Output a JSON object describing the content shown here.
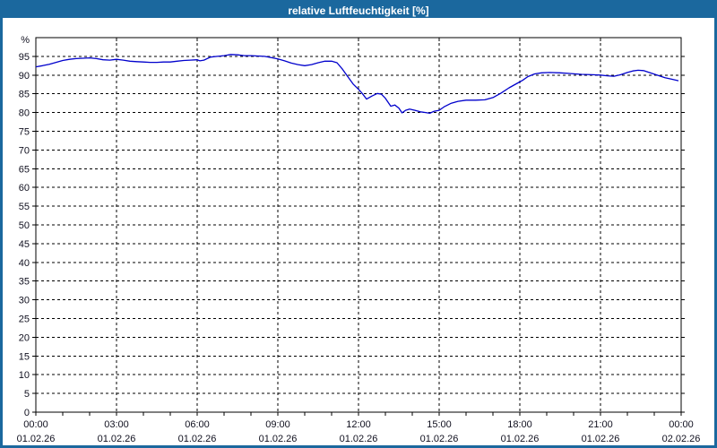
{
  "window": {
    "title": "relative Luftfeuchtigkeit [%]"
  },
  "colors": {
    "frame": "#1b689e",
    "title_text": "#ffffff",
    "background": "#ffffff",
    "plot_line": "#0000cc",
    "grid": "#000000",
    "label": "#10101f"
  },
  "chart_data": {
    "type": "line",
    "title": "relative Luftfeuchtigkeit [%]",
    "xlabel": "",
    "ylabel": "%",
    "ylim": [
      0,
      100
    ],
    "y_tick_step": 5,
    "y_ticks": [
      0,
      5,
      10,
      15,
      20,
      25,
      30,
      35,
      40,
      45,
      50,
      55,
      60,
      65,
      70,
      75,
      80,
      85,
      90,
      95
    ],
    "y_axis_unit_label": "%",
    "x_range_hours": [
      0,
      24
    ],
    "x_minor_tick_hours": 1,
    "grid": "dashed",
    "legend_position": "none",
    "x_major_ticks": [
      {
        "hour": 0,
        "time": "00:00",
        "date": "01.02.26"
      },
      {
        "hour": 3,
        "time": "03:00",
        "date": "01.02.26"
      },
      {
        "hour": 6,
        "time": "06:00",
        "date": "01.02.26"
      },
      {
        "hour": 9,
        "time": "09:00",
        "date": "01.02.26"
      },
      {
        "hour": 12,
        "time": "12:00",
        "date": "01.02.26"
      },
      {
        "hour": 15,
        "time": "15:00",
        "date": "01.02.26"
      },
      {
        "hour": 18,
        "time": "18:00",
        "date": "01.02.26"
      },
      {
        "hour": 21,
        "time": "21:00",
        "date": "01.02.26"
      },
      {
        "hour": 24,
        "time": "00:00",
        "date": "02.02.26"
      }
    ],
    "series": [
      {
        "name": "relative Luftfeuchtigkeit",
        "unit": "%",
        "color": "#0000cc",
        "points": [
          [
            0,
            92.2
          ],
          [
            0.25,
            92.5
          ],
          [
            0.5,
            92.9
          ],
          [
            0.75,
            93.4
          ],
          [
            1,
            93.9
          ],
          [
            1.25,
            94.2
          ],
          [
            1.5,
            94.4
          ],
          [
            1.75,
            94.5
          ],
          [
            2,
            94.6
          ],
          [
            2.25,
            94.4
          ],
          [
            2.5,
            94.1
          ],
          [
            2.75,
            94.0
          ],
          [
            3,
            94.2
          ],
          [
            3.25,
            94.0
          ],
          [
            3.5,
            93.7
          ],
          [
            3.75,
            93.6
          ],
          [
            4,
            93.5
          ],
          [
            4.25,
            93.4
          ],
          [
            4.5,
            93.4
          ],
          [
            4.75,
            93.5
          ],
          [
            5,
            93.5
          ],
          [
            5.25,
            93.7
          ],
          [
            5.5,
            93.9
          ],
          [
            5.75,
            94.0
          ],
          [
            6,
            94.1
          ],
          [
            6.1,
            93.8
          ],
          [
            6.25,
            94.0
          ],
          [
            6.5,
            94.8
          ],
          [
            6.75,
            95.0
          ],
          [
            7,
            95.2
          ],
          [
            7.25,
            95.5
          ],
          [
            7.5,
            95.4
          ],
          [
            7.75,
            95.2
          ],
          [
            8,
            95.2
          ],
          [
            8.25,
            95.1
          ],
          [
            8.5,
            95.0
          ],
          [
            8.75,
            94.7
          ],
          [
            9,
            94.3
          ],
          [
            9.25,
            93.8
          ],
          [
            9.5,
            93.2
          ],
          [
            9.75,
            92.8
          ],
          [
            10,
            92.5
          ],
          [
            10.25,
            92.8
          ],
          [
            10.5,
            93.3
          ],
          [
            10.75,
            93.7
          ],
          [
            11,
            93.7
          ],
          [
            11.2,
            93.3
          ],
          [
            11.4,
            91.6
          ],
          [
            11.6,
            89.6
          ],
          [
            11.8,
            87.6
          ],
          [
            12,
            86.2
          ],
          [
            12.15,
            85.0
          ],
          [
            12.3,
            83.6
          ],
          [
            12.5,
            84.4
          ],
          [
            12.7,
            85.1
          ],
          [
            12.85,
            84.9
          ],
          [
            13,
            83.8
          ],
          [
            13.2,
            81.7
          ],
          [
            13.35,
            82.0
          ],
          [
            13.5,
            81.2
          ],
          [
            13.62,
            79.9
          ],
          [
            13.75,
            80.6
          ],
          [
            13.9,
            80.9
          ],
          [
            14.1,
            80.6
          ],
          [
            14.3,
            80.2
          ],
          [
            14.5,
            80.0
          ],
          [
            14.65,
            79.8
          ],
          [
            14.8,
            80.3
          ],
          [
            15,
            80.6
          ],
          [
            15.2,
            81.6
          ],
          [
            15.45,
            82.5
          ],
          [
            15.7,
            83.0
          ],
          [
            16,
            83.3
          ],
          [
            16.35,
            83.3
          ],
          [
            16.7,
            83.4
          ],
          [
            17,
            84.0
          ],
          [
            17.3,
            85.2
          ],
          [
            17.6,
            86.6
          ],
          [
            17.9,
            87.8
          ],
          [
            18.1,
            88.6
          ],
          [
            18.3,
            89.6
          ],
          [
            18.55,
            90.3
          ],
          [
            18.8,
            90.6
          ],
          [
            19.1,
            90.7
          ],
          [
            19.5,
            90.6
          ],
          [
            19.9,
            90.4
          ],
          [
            20.3,
            90.2
          ],
          [
            20.7,
            90.1
          ],
          [
            21,
            90.0
          ],
          [
            21.25,
            89.8
          ],
          [
            21.5,
            89.7
          ],
          [
            21.75,
            90.1
          ],
          [
            22,
            90.7
          ],
          [
            22.2,
            91.1
          ],
          [
            22.4,
            91.3
          ],
          [
            22.6,
            91.2
          ],
          [
            22.85,
            90.6
          ],
          [
            23.1,
            90.0
          ],
          [
            23.4,
            89.3
          ],
          [
            23.65,
            88.9
          ],
          [
            23.9,
            88.5
          ]
        ]
      }
    ]
  }
}
